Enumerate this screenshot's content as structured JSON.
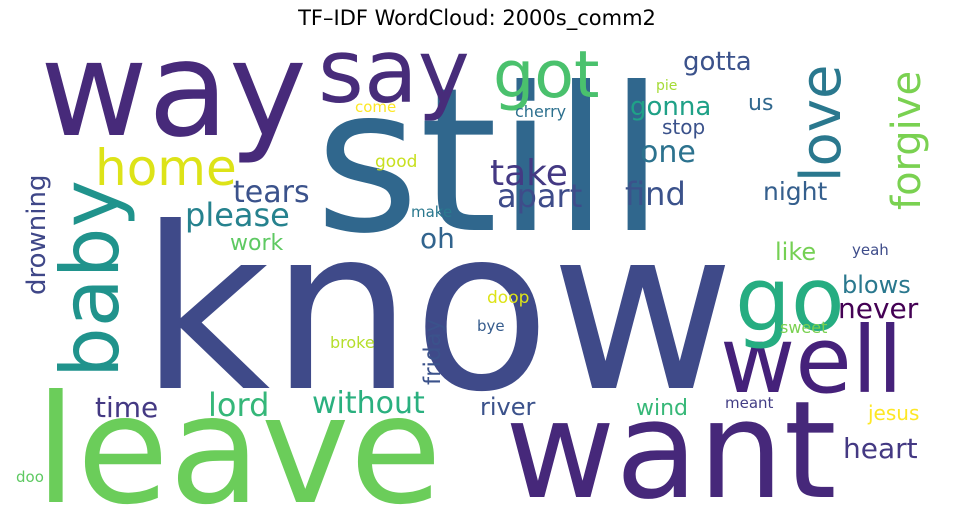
{
  "title": "TF–IDF WordCloud: 2000s_comm2",
  "words": [
    {
      "id": "still",
      "text": "still",
      "color": "#30678d"
    },
    {
      "id": "know",
      "text": "know",
      "color": "#3f4a89"
    },
    {
      "id": "leave",
      "text": "leave",
      "color": "#6bcd5a"
    },
    {
      "id": "want",
      "text": "want",
      "color": "#46287a"
    },
    {
      "id": "way",
      "text": "way",
      "color": "#472a7a"
    },
    {
      "id": "say",
      "text": "say",
      "color": "#472c7a"
    },
    {
      "id": "well",
      "text": "well",
      "color": "#45217a"
    },
    {
      "id": "baby",
      "text": "baby",
      "color": "#20938c"
    },
    {
      "id": "go",
      "text": "go",
      "color": "#26ad81"
    },
    {
      "id": "got",
      "text": "got",
      "color": "#4ac16d"
    },
    {
      "id": "home",
      "text": "home",
      "color": "#dde318"
    },
    {
      "id": "love",
      "text": "love",
      "color": "#2a788e"
    },
    {
      "id": "forgive",
      "text": "forgive",
      "color": "#7ad151"
    },
    {
      "id": "take",
      "text": "take",
      "color": "#443983"
    },
    {
      "id": "apart",
      "text": "apart",
      "color": "#3e4c8a"
    },
    {
      "id": "one",
      "text": "one",
      "color": "#2c728e"
    },
    {
      "id": "find",
      "text": "find",
      "color": "#3b528b"
    },
    {
      "id": "tears",
      "text": "tears",
      "color": "#3b528b"
    },
    {
      "id": "please",
      "text": "please",
      "color": "#26828e"
    },
    {
      "id": "oh",
      "text": "oh",
      "color": "#32648e"
    },
    {
      "id": "gotta",
      "text": "gotta",
      "color": "#3b528b"
    },
    {
      "id": "gonna",
      "text": "gonna",
      "color": "#1fa187"
    },
    {
      "id": "stop",
      "text": "stop",
      "color": "#3b528b"
    },
    {
      "id": "us",
      "text": "us",
      "color": "#31688e"
    },
    {
      "id": "night",
      "text": "night",
      "color": "#355f8d"
    },
    {
      "id": "drowning",
      "text": "drowning",
      "color": "#3f4788"
    },
    {
      "id": "work",
      "text": "work",
      "color": "#5ec962"
    },
    {
      "id": "like",
      "text": "like",
      "color": "#75d054"
    },
    {
      "id": "blows",
      "text": "blows",
      "color": "#2a788e"
    },
    {
      "id": "never",
      "text": "never",
      "color": "#440154"
    },
    {
      "id": "friday",
      "text": "friday",
      "color": "#3b528b"
    },
    {
      "id": "time",
      "text": "time",
      "color": "#443983"
    },
    {
      "id": "lord",
      "text": "lord",
      "color": "#35b779"
    },
    {
      "id": "without",
      "text": "without",
      "color": "#2ab07f"
    },
    {
      "id": "river",
      "text": "river",
      "color": "#3b528b"
    },
    {
      "id": "wind",
      "text": "wind",
      "color": "#37b878"
    },
    {
      "id": "heart",
      "text": "heart",
      "color": "#443983"
    },
    {
      "id": "jesus",
      "text": "jesus",
      "color": "#fde725"
    },
    {
      "id": "meant",
      "text": "meant",
      "color": "#433e85"
    },
    {
      "id": "sweet",
      "text": "sweet",
      "color": "#7ad151"
    },
    {
      "id": "yeah",
      "text": "yeah",
      "color": "#3e4c8a"
    },
    {
      "id": "doop",
      "text": "doop",
      "color": "#dde318"
    },
    {
      "id": "bye",
      "text": "bye",
      "color": "#365c8d"
    },
    {
      "id": "broke",
      "text": "broke",
      "color": "#b5de2b"
    },
    {
      "id": "make",
      "text": "make",
      "color": "#2a788e"
    },
    {
      "id": "good",
      "text": "good",
      "color": "#c8e020"
    },
    {
      "id": "come",
      "text": "come",
      "color": "#fde725"
    },
    {
      "id": "pie",
      "text": "pie",
      "color": "#a5db36"
    },
    {
      "id": "cherry",
      "text": "cherry",
      "color": "#2d708e"
    },
    {
      "id": "doo",
      "text": "doo",
      "color": "#5ec962"
    }
  ]
}
